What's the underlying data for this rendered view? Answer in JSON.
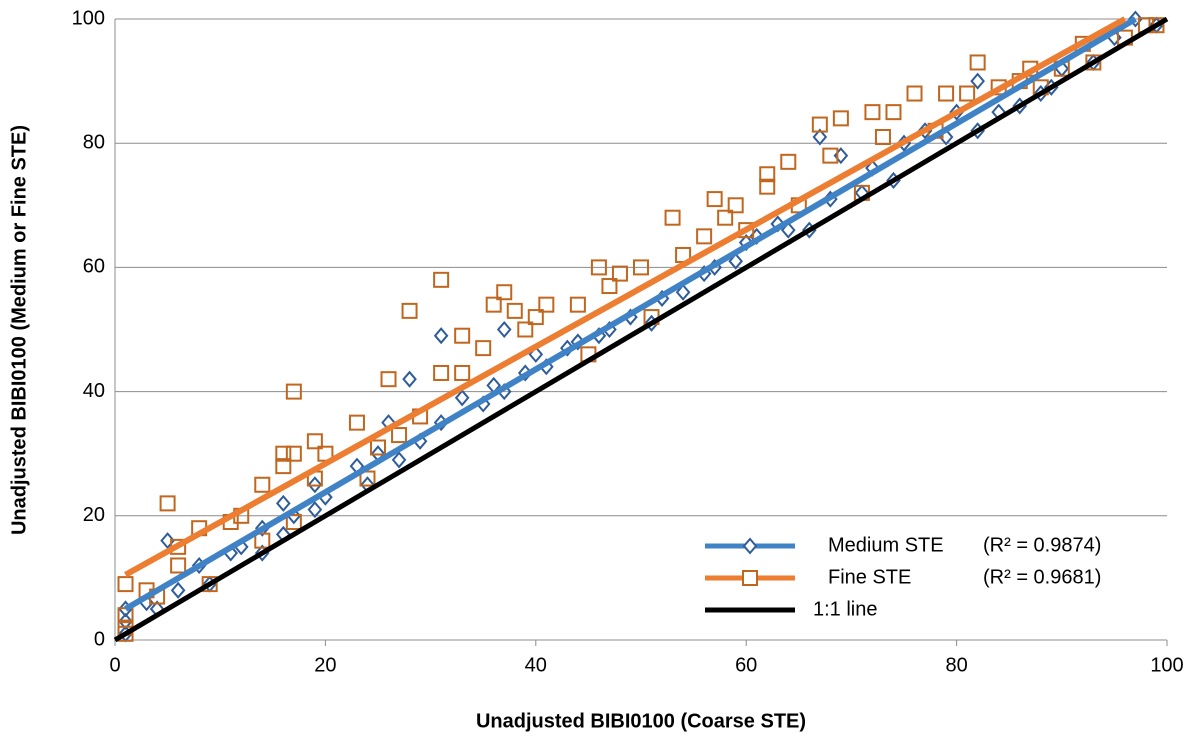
{
  "chart_data": {
    "type": "scatter",
    "x_label": "Unadjusted BIBI0100 (Coarse STE)",
    "y_label": "Unadjusted BIBI0100 (Medium or Fine STE)",
    "xlim": [
      0,
      100
    ],
    "ylim": [
      0,
      100
    ],
    "xticks": [
      0,
      20,
      40,
      60,
      80,
      100
    ],
    "yticks": [
      0,
      20,
      40,
      60,
      80,
      100
    ],
    "grid": true,
    "legend": "lower-right",
    "series": [
      {
        "name": "Medium STE",
        "marker": "diamond",
        "color": "#2e5c9a",
        "line_color": "#3f83c6",
        "r2_label": "(R² = 0.9874)",
        "x": [
          1,
          1,
          1,
          3,
          4,
          5,
          6,
          8,
          9,
          11,
          12,
          14,
          14,
          16,
          16,
          17,
          19,
          19,
          20,
          23,
          24,
          25,
          26,
          27,
          28,
          29,
          31,
          31,
          33,
          35,
          36,
          37,
          37,
          39,
          40,
          41,
          43,
          44,
          46,
          47,
          49,
          51,
          52,
          54,
          56,
          57,
          59,
          60,
          61,
          63,
          64,
          66,
          67,
          68,
          69,
          71,
          72,
          74,
          75,
          77,
          79,
          80,
          82,
          82,
          84,
          86,
          88,
          89,
          90,
          93,
          95,
          97,
          99
        ],
        "values": [
          1,
          3,
          5,
          6,
          5,
          16,
          8,
          12,
          9,
          14,
          15,
          14,
          18,
          17,
          22,
          20,
          21,
          25,
          23,
          28,
          25,
          30,
          35,
          29,
          42,
          32,
          35,
          49,
          39,
          38,
          41,
          40,
          50,
          43,
          46,
          44,
          47,
          48,
          49,
          50,
          52,
          51,
          55,
          56,
          59,
          60,
          61,
          64,
          65,
          67,
          66,
          66,
          81,
          71,
          78,
          72,
          76,
          74,
          80,
          82,
          81,
          85,
          82,
          90,
          85,
          86,
          88,
          89,
          92,
          93,
          97,
          100,
          99
        ],
        "fit": {
          "x": [
            1,
            97
          ],
          "values": [
            5,
            100
          ]
        }
      },
      {
        "name": "Fine STE",
        "marker": "square",
        "color": "#c0661e",
        "line_color": "#ed7d31",
        "r2_label": "(R² = 0.9681)",
        "x": [
          1,
          1,
          1,
          1,
          3,
          4,
          5,
          6,
          6,
          8,
          9,
          11,
          12,
          14,
          14,
          16,
          16,
          17,
          17,
          17,
          19,
          19,
          20,
          23,
          24,
          25,
          26,
          27,
          28,
          29,
          31,
          31,
          33,
          33,
          35,
          36,
          37,
          38,
          39,
          40,
          41,
          44,
          45,
          46,
          47,
          48,
          50,
          51,
          53,
          54,
          56,
          57,
          58,
          59,
          60,
          62,
          62,
          64,
          65,
          67,
          68,
          69,
          71,
          72,
          73,
          74,
          76,
          78,
          79,
          81,
          82,
          84,
          86,
          87,
          88,
          90,
          92,
          93,
          96,
          98,
          99
        ],
        "values": [
          1,
          2,
          4,
          9,
          8,
          7,
          22,
          12,
          15,
          18,
          9,
          19,
          20,
          16,
          25,
          28,
          30,
          19,
          30,
          40,
          26,
          32,
          30,
          35,
          26,
          31,
          42,
          33,
          53,
          36,
          43,
          58,
          49,
          43,
          47,
          54,
          56,
          53,
          50,
          52,
          54,
          54,
          46,
          60,
          57,
          59,
          60,
          52,
          68,
          62,
          65,
          71,
          68,
          70,
          66,
          75,
          73,
          77,
          70,
          83,
          78,
          84,
          72,
          85,
          81,
          85,
          88,
          82,
          88,
          88,
          93,
          89,
          90,
          92,
          89,
          92,
          96,
          93,
          97,
          99,
          99
        ],
        "fit": {
          "x": [
            1,
            96
          ],
          "values": [
            10.5,
            100
          ]
        }
      }
    ],
    "lines": [
      {
        "name": "1:1 line",
        "color": "#000000",
        "x": [
          0,
          100
        ],
        "values": [
          0,
          100
        ]
      }
    ]
  }
}
